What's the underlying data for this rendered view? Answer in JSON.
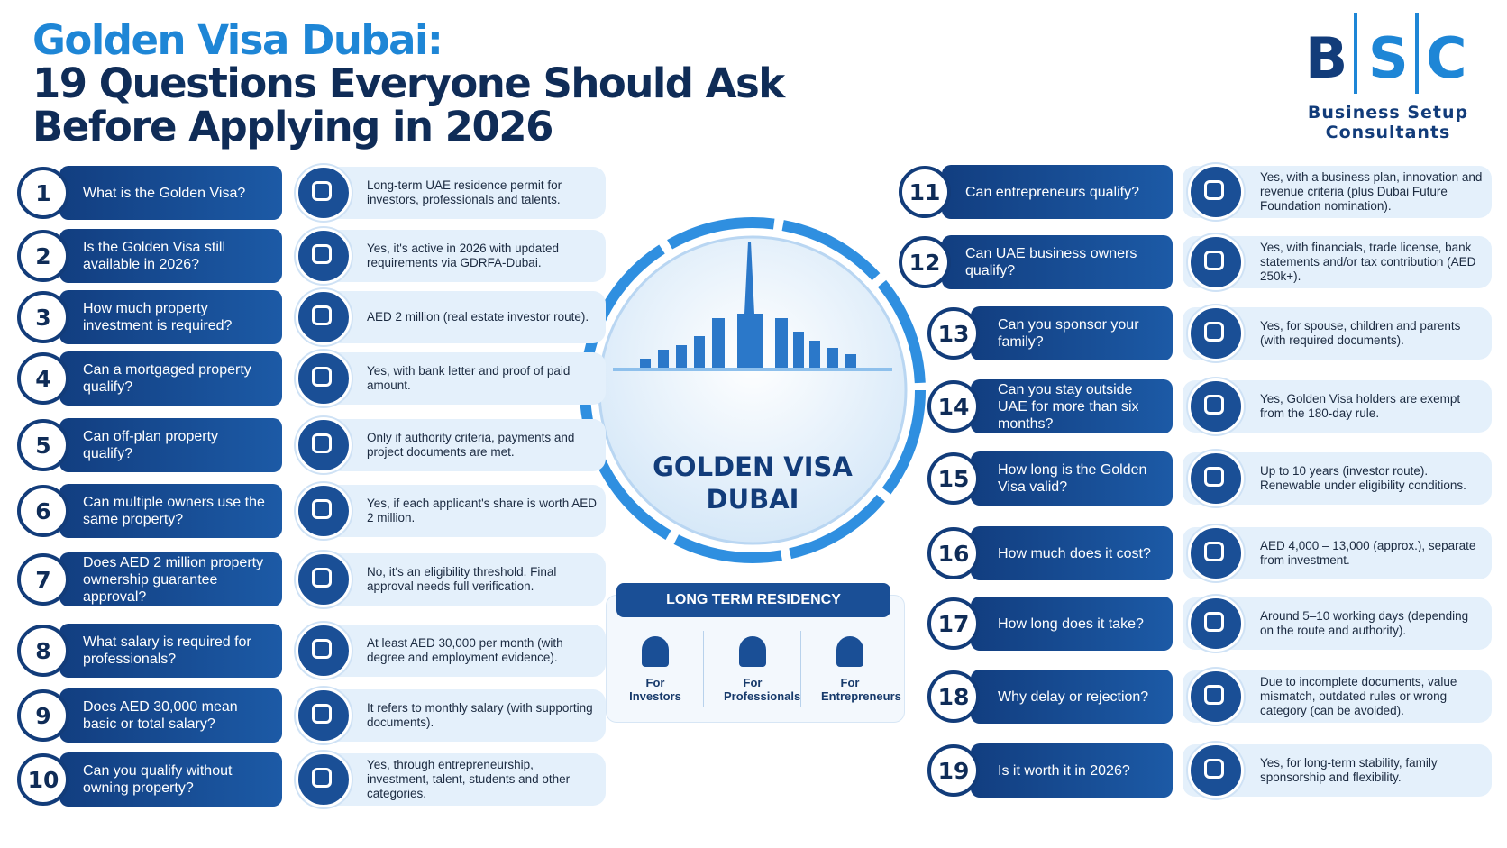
{
  "header": {
    "title_line1": "Golden Visa Dubai:",
    "title_line2": "19 Questions Everyone Should Ask",
    "title_line3": "Before Applying in 2026"
  },
  "logo": {
    "letters": [
      "B",
      "S",
      "C"
    ],
    "line1": "Business Setup",
    "line2": "Consultants"
  },
  "center": {
    "label": [
      "GOLDEN VISA",
      "DUBAI"
    ],
    "residency": {
      "title": "LONG TERM RESIDENCY",
      "cards": [
        "For Investors",
        "For Professionals",
        "For Entrepreneurs"
      ]
    }
  },
  "questions": [
    {
      "number": 1,
      "question": "What is the Golden Visa?",
      "answer": "Long-term UAE residence permit for investors, professionals and talents."
    },
    {
      "number": 2,
      "question": "Is the Golden Visa still available in 2026?",
      "answer": "Yes, it's active in 2026 with updated requirements via GDRFA-Dubai."
    },
    {
      "number": 3,
      "question": "How much property investment is required?",
      "answer": "AED 2 million (real estate investor route)."
    },
    {
      "number": 4,
      "question": "Can a mortgaged property qualify?",
      "answer": "Yes, with bank letter and proof of paid amount."
    },
    {
      "number": 5,
      "question": "Can off-plan property qualify?",
      "answer": "Only if authority criteria, payments and project documents are met."
    },
    {
      "number": 6,
      "question": "Can multiple owners use the same property?",
      "answer": "Yes, if each applicant's share is worth AED 2 million."
    },
    {
      "number": 7,
      "question": "Does AED 2 million property ownership guarantee approval?",
      "answer": "No, it's an eligibility threshold. Final approval needs full verification."
    },
    {
      "number": 8,
      "question": "What salary is required for professionals?",
      "answer": "At least AED 30,000 per month (with degree and employment evidence)."
    },
    {
      "number": 9,
      "question": "Does AED 30,000 mean basic or total salary?",
      "answer": "It refers to monthly salary (with supporting documents)."
    },
    {
      "number": 10,
      "question": "Can you qualify without owning property?",
      "answer": "Yes, through entrepreneurship, investment, talent, students and other categories."
    },
    {
      "number": 11,
      "question": "Can entrepreneurs qualify?",
      "answer": "Yes, with a business plan, innovation and revenue criteria (plus Dubai Future Foundation nomination)."
    },
    {
      "number": 12,
      "question": "Can UAE business owners qualify?",
      "answer": "Yes, with financials, trade license, bank statements and/or tax contribution (AED 250k+)."
    },
    {
      "number": 13,
      "question": "Can you sponsor your family?",
      "answer": "Yes, for spouse, children and parents (with required documents)."
    },
    {
      "number": 14,
      "question": "Can you stay outside UAE for more than six months?",
      "answer": "Yes, Golden Visa holders are exempt from the 180-day rule."
    },
    {
      "number": 15,
      "question": "How long is the Golden Visa valid?",
      "answer": "Up to 10 years (investor route). Renewable under eligibility conditions."
    },
    {
      "number": 16,
      "question": "How much does it cost?",
      "answer": "AED 4,000 – 13,000 (approx.), separate from investment."
    },
    {
      "number": 17,
      "question": "How long does it take?",
      "answer": "Around 5–10 working days (depending on the route and authority)."
    },
    {
      "number": 18,
      "question": "Why delay or rejection?",
      "answer": "Due to incomplete documents, value mismatch, outdated rules or wrong category (can be avoided)."
    },
    {
      "number": 19,
      "question": "Is it worth it in 2026?",
      "answer": "Yes, for long-term stability, family sponsorship and flexibility."
    }
  ]
}
